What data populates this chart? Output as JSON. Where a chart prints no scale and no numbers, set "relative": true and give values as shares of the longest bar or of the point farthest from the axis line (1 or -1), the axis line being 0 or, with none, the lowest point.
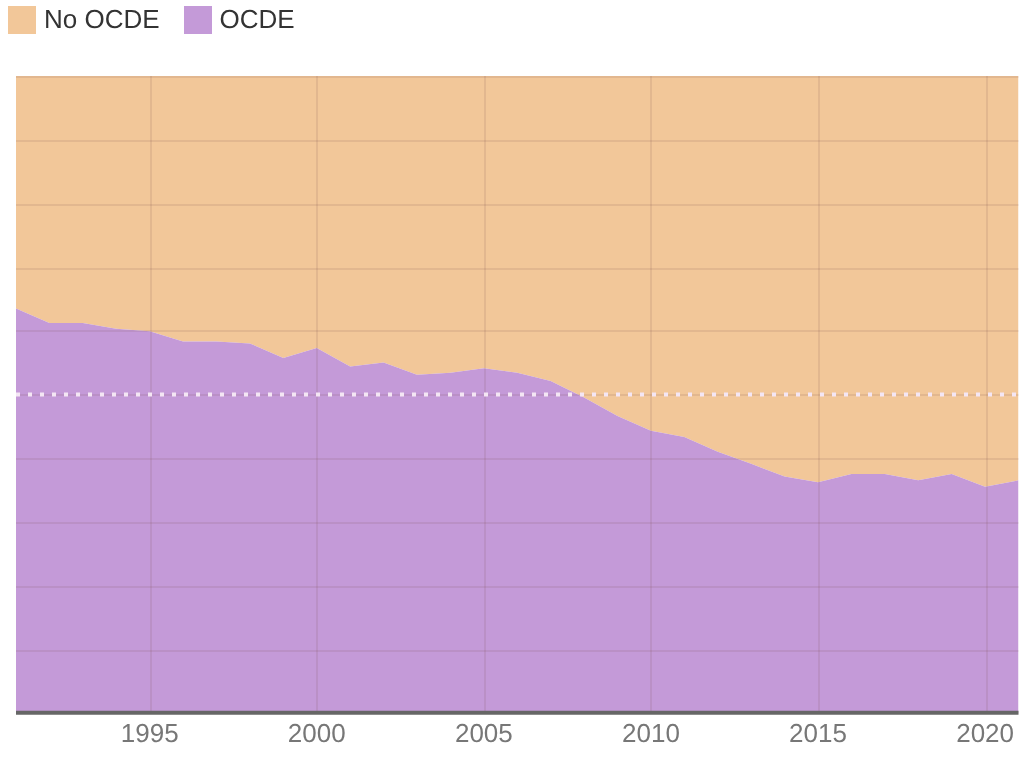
{
  "chart_data": {
    "type": "area",
    "stacked": true,
    "relative": true,
    "x": [
      1991,
      1992,
      1993,
      1994,
      1995,
      1996,
      1997,
      1998,
      1999,
      2000,
      2001,
      2002,
      2003,
      2004,
      2005,
      2006,
      2007,
      2008,
      2009,
      2010,
      2011,
      2012,
      2013,
      2014,
      2015,
      2016,
      2017,
      2018,
      2019,
      2020,
      2021
    ],
    "xlim": [
      1991,
      2021
    ],
    "xticks": [
      1995,
      2000,
      2005,
      2010,
      2015,
      2020
    ],
    "series": [
      {
        "name": "OCDE",
        "color": "#c49ad8",
        "values": [
          0.635,
          0.612,
          0.612,
          0.603,
          0.599,
          0.583,
          0.583,
          0.58,
          0.557,
          0.573,
          0.544,
          0.55,
          0.531,
          0.534,
          0.541,
          0.534,
          0.521,
          0.495,
          0.466,
          0.443,
          0.433,
          0.41,
          0.391,
          0.371,
          0.362,
          0.375,
          0.375,
          0.365,
          0.375,
          0.355,
          0.365
        ]
      },
      {
        "name": "No OCDE",
        "color": "#f2c799",
        "values": [
          0.365,
          0.388,
          0.388,
          0.397,
          0.401,
          0.417,
          0.417,
          0.42,
          0.443,
          0.427,
          0.456,
          0.45,
          0.469,
          0.466,
          0.459,
          0.466,
          0.479,
          0.505,
          0.534,
          0.557,
          0.567,
          0.59,
          0.609,
          0.629,
          0.638,
          0.625,
          0.625,
          0.635,
          0.625,
          0.645,
          0.635
        ]
      }
    ],
    "ref_lines": [
      {
        "axis": "y",
        "value": 0.5,
        "color": "#f4e6f4",
        "line_style": "dotted"
      }
    ],
    "grid": true,
    "legend": "top left",
    "tick_labels": "x"
  }
}
